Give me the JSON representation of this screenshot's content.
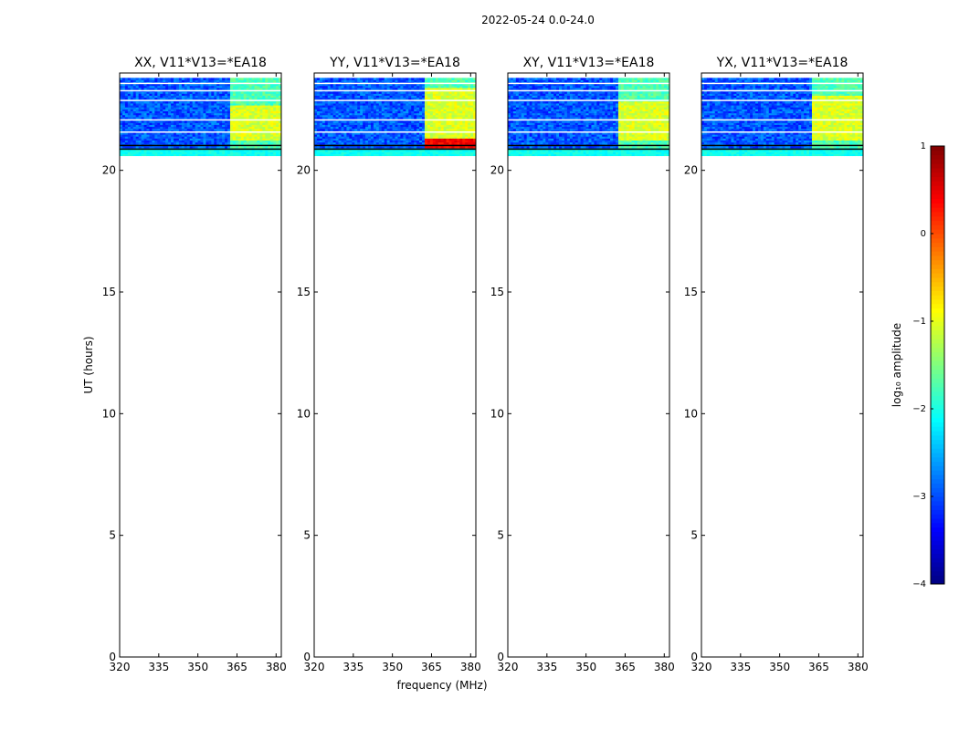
{
  "chart_data": {
    "type": "heatmap",
    "suptitle": "2022-05-24 0.0-24.0",
    "xlabel": "frequency (MHz)",
    "ylabel": "UT (hours)",
    "xlim": [
      320,
      382
    ],
    "ylim": [
      0,
      24
    ],
    "xticks": [
      320,
      335,
      350,
      365,
      380
    ],
    "yticks": [
      0,
      5,
      10,
      15,
      20
    ],
    "data_band_hours": [
      20.6,
      23.8
    ],
    "bright_channels_mhz": [
      [
        362,
        366.5
      ],
      [
        367,
        371.5
      ],
      [
        372,
        376.5
      ],
      [
        377,
        381.5
      ]
    ],
    "panels": [
      {
        "title": "XX, V11*V13=*EA18",
        "pol": "XX",
        "strong_band": [
          21.2,
          22.6
        ]
      },
      {
        "title": "YY, V11*V13=*EA18",
        "pol": "YY",
        "strong_band": [
          21.0,
          23.4
        ]
      },
      {
        "title": "XY, V11*V13=*EA18",
        "pol": "XY",
        "strong_band": [
          21.2,
          22.8
        ]
      },
      {
        "title": "YX, V11*V13=*EA18",
        "pol": "YX",
        "strong_band": [
          21.2,
          23.0
        ]
      }
    ],
    "colorbar": {
      "label": "log₁₀ amplitude",
      "range": [
        -4,
        1
      ],
      "ticks": [
        1,
        0,
        -1,
        -2,
        -3,
        -4
      ],
      "tick_labels": [
        "1",
        "0",
        "−1",
        "−2",
        "−3",
        "−4"
      ],
      "colormap": "jet"
    }
  }
}
